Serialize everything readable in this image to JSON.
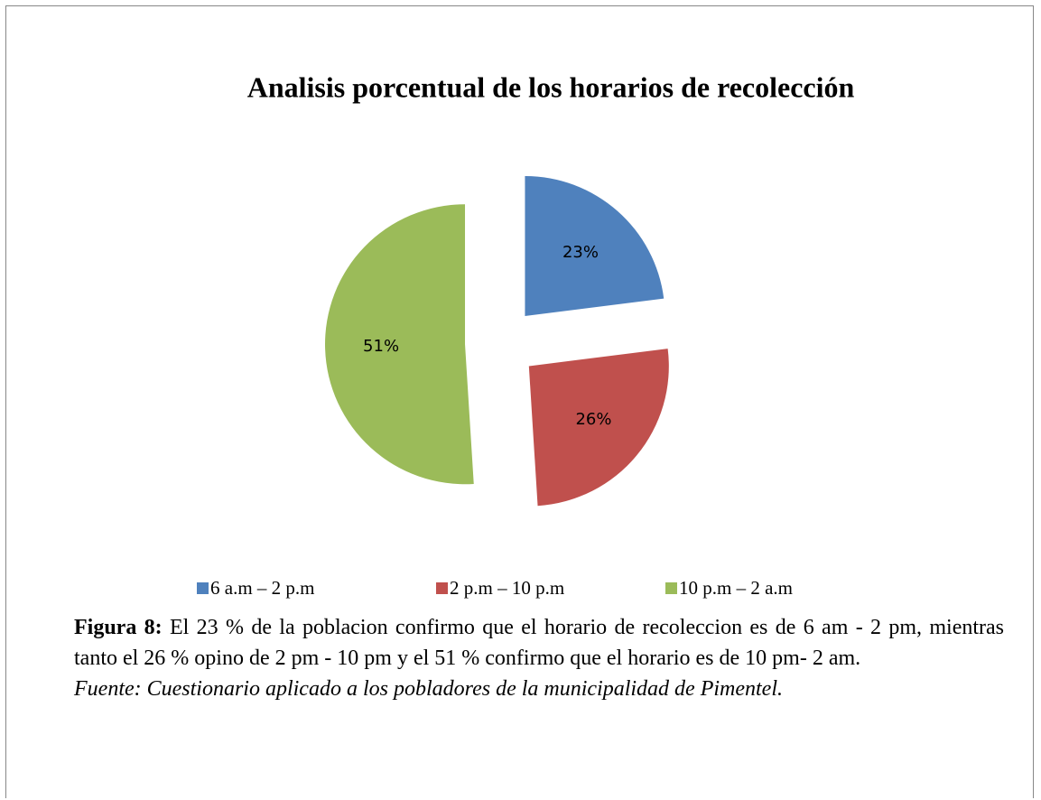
{
  "chart_data": {
    "type": "pie",
    "title": "Analisis porcentual de los horarios de recolección",
    "categories": [
      "6 a.m – 2 p.m",
      "2 p.m – 10 p.m",
      "10 p.m – 2 a.m"
    ],
    "values": [
      23,
      26,
      51
    ],
    "value_labels": [
      "23%",
      "26%",
      "51%"
    ],
    "colors": [
      "#4f81bd",
      "#c0504d",
      "#9bbb59"
    ],
    "legend": "bottom"
  },
  "caption": {
    "label": "Figura 8:",
    "text": "El 23 %  de la poblacion confirmo que el horario de recoleccion es de 6 am - 2 pm, mientras tanto el 26 % opino de 2 pm - 10 pm y el 51 % confirmo  que el horario es de 10 pm- 2 am.",
    "source": "Fuente: Cuestionario aplicado a los pobladores de la municipalidad de Pimentel."
  }
}
